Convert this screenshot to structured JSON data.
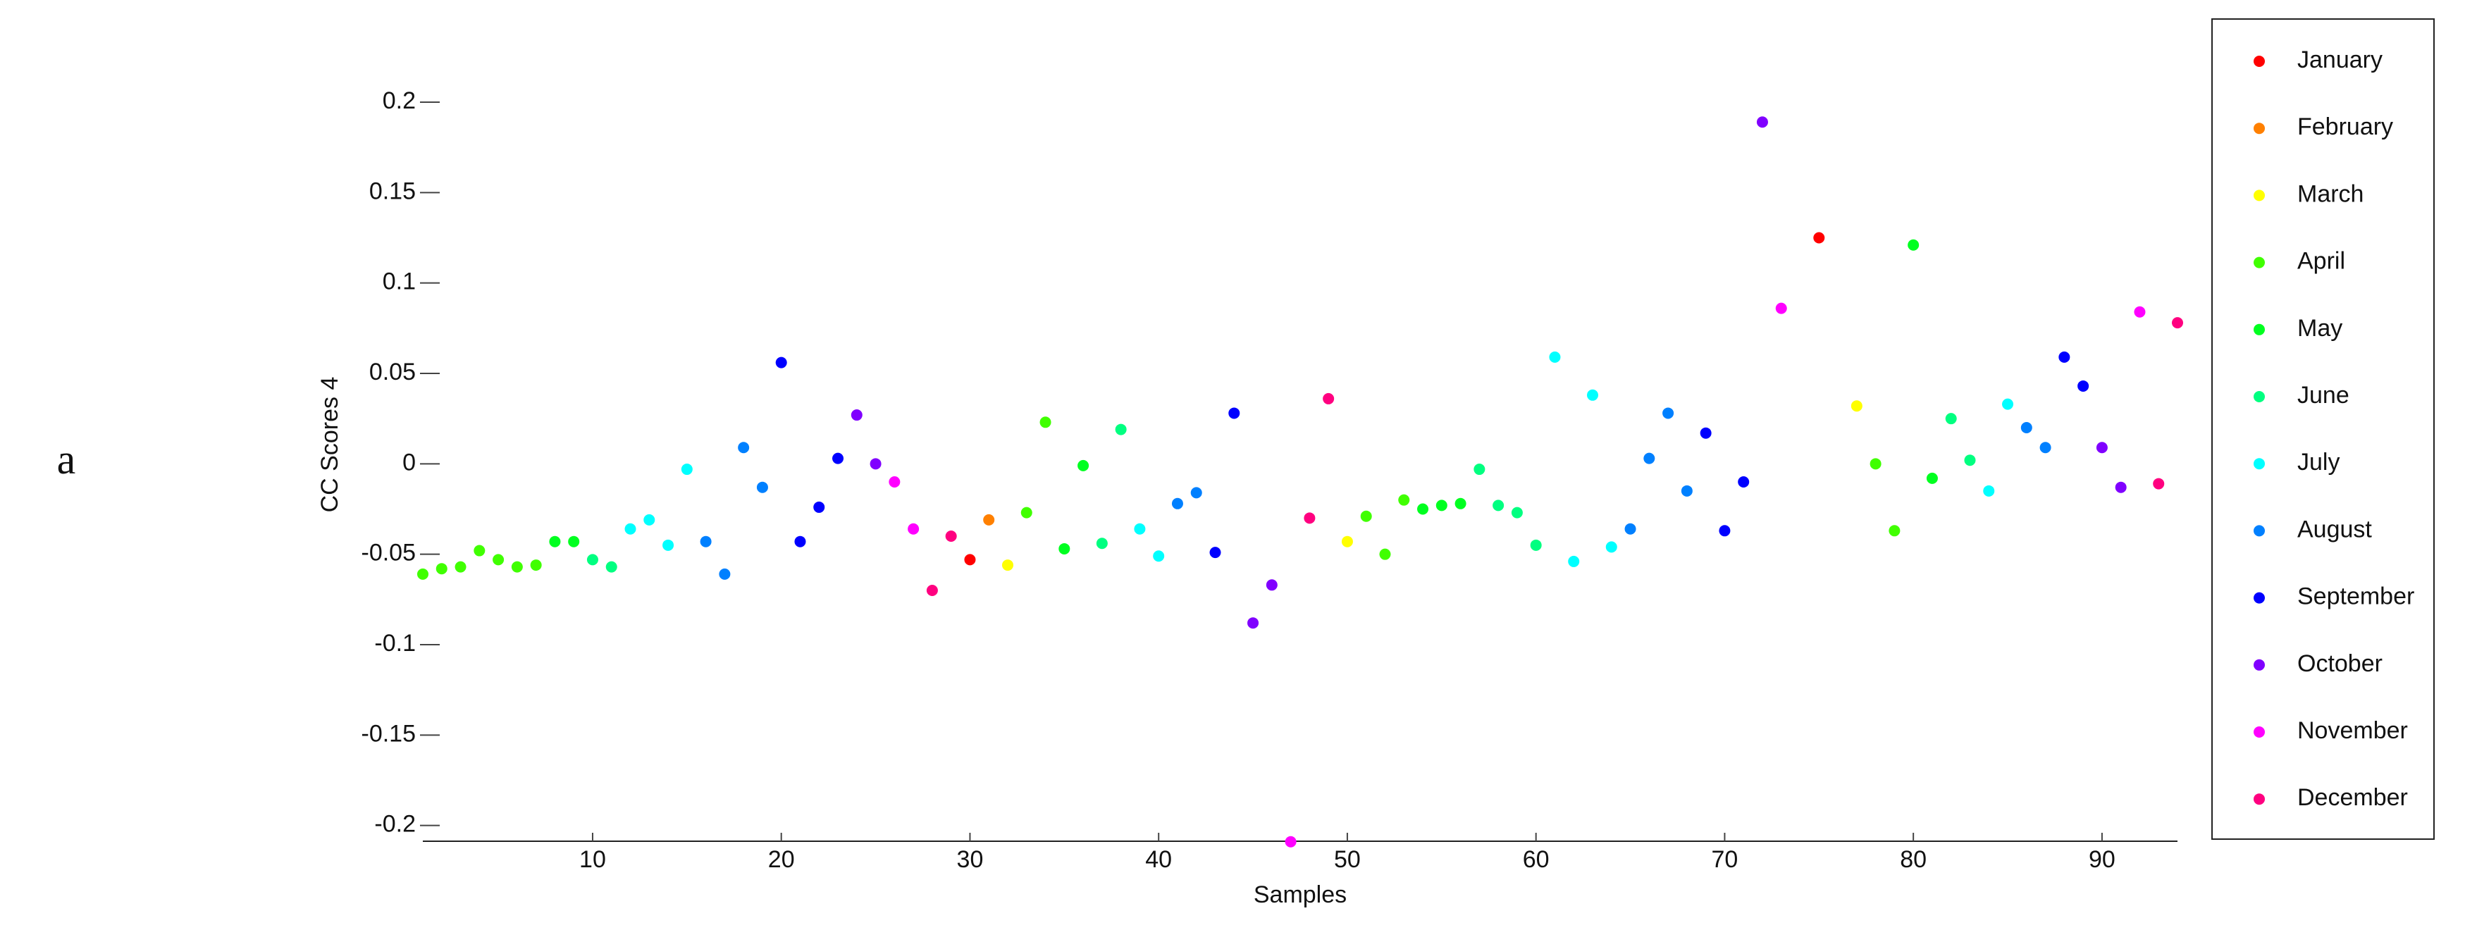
{
  "chart_data": {
    "type": "scatter",
    "panel_label": "a",
    "xlabel": "Samples",
    "ylabel": "CC Scores 4",
    "xlim": [
      1,
      94
    ],
    "ylim": [
      -0.2087,
      0.23
    ],
    "xticks": [
      10,
      20,
      30,
      40,
      50,
      60,
      70,
      80,
      90
    ],
    "yticks": [
      0.2,
      0.15,
      0.1,
      0.05,
      0,
      -0.05,
      -0.1,
      -0.15,
      -0.2
    ],
    "legend": "outside right",
    "series": [
      {
        "name": "January",
        "color": "#ff0000",
        "x": [
          30,
          75
        ],
        "values": [
          -0.053,
          0.125
        ]
      },
      {
        "name": "February",
        "color": "#ff8000",
        "x": [
          31
        ],
        "values": [
          -0.031
        ]
      },
      {
        "name": "March",
        "color": "#ffff00",
        "x": [
          32,
          50,
          77
        ],
        "values": [
          -0.056,
          -0.043,
          0.032
        ]
      },
      {
        "name": "April",
        "color": "#40ff00",
        "x": [
          1,
          2,
          3,
          4,
          5,
          6,
          7,
          33,
          34,
          51,
          52,
          53,
          78,
          79
        ],
        "values": [
          -0.061,
          -0.058,
          -0.057,
          -0.048,
          -0.053,
          -0.057,
          -0.056,
          -0.027,
          0.023,
          -0.029,
          -0.05,
          -0.02,
          0.0,
          -0.037
        ]
      },
      {
        "name": "May",
        "color": "#00ff20",
        "x": [
          8,
          9,
          35,
          36,
          54,
          55,
          56,
          80,
          81
        ],
        "values": [
          -0.043,
          -0.043,
          -0.047,
          -0.001,
          -0.025,
          -0.023,
          -0.022,
          0.121,
          -0.008
        ]
      },
      {
        "name": "June",
        "color": "#00ff80",
        "x": [
          10,
          11,
          37,
          38,
          57,
          58,
          59,
          60,
          82,
          83
        ],
        "values": [
          -0.053,
          -0.057,
          -0.044,
          0.019,
          -0.003,
          -0.023,
          -0.027,
          -0.045,
          0.025,
          0.002
        ]
      },
      {
        "name": "July",
        "color": "#00ffff",
        "x": [
          12,
          13,
          14,
          15,
          39,
          40,
          61,
          62,
          63,
          64,
          84,
          85
        ],
        "values": [
          -0.036,
          -0.031,
          -0.045,
          -0.003,
          -0.036,
          -0.051,
          0.059,
          -0.054,
          0.038,
          -0.046,
          -0.015,
          0.033
        ]
      },
      {
        "name": "August",
        "color": "#0080ff",
        "x": [
          16,
          17,
          18,
          19,
          41,
          42,
          65,
          66,
          67,
          68,
          86,
          87
        ],
        "values": [
          -0.043,
          -0.061,
          0.009,
          -0.013,
          -0.022,
          -0.016,
          -0.036,
          0.003,
          0.028,
          -0.015,
          0.02,
          0.009
        ]
      },
      {
        "name": "September",
        "color": "#0000ff",
        "x": [
          20,
          21,
          22,
          23,
          43,
          44,
          69,
          70,
          71,
          88,
          89
        ],
        "values": [
          0.056,
          -0.043,
          -0.024,
          0.003,
          -0.049,
          0.028,
          0.017,
          -0.037,
          -0.01,
          0.059,
          0.043
        ]
      },
      {
        "name": "October",
        "color": "#8000ff",
        "x": [
          24,
          25,
          45,
          46,
          72,
          90,
          91
        ],
        "values": [
          0.027,
          0.0,
          -0.088,
          -0.067,
          0.189,
          0.009,
          -0.013
        ]
      },
      {
        "name": "November",
        "color": "#ff00ff",
        "x": [
          26,
          27,
          47,
          73,
          92
        ],
        "values": [
          -0.01,
          -0.036,
          -0.209,
          0.086,
          0.084
        ]
      },
      {
        "name": "December",
        "color": "#ff0080",
        "x": [
          28,
          29,
          48,
          49,
          93,
          94
        ],
        "values": [
          -0.07,
          -0.04,
          -0.03,
          0.036,
          -0.011,
          0.078
        ]
      }
    ]
  }
}
